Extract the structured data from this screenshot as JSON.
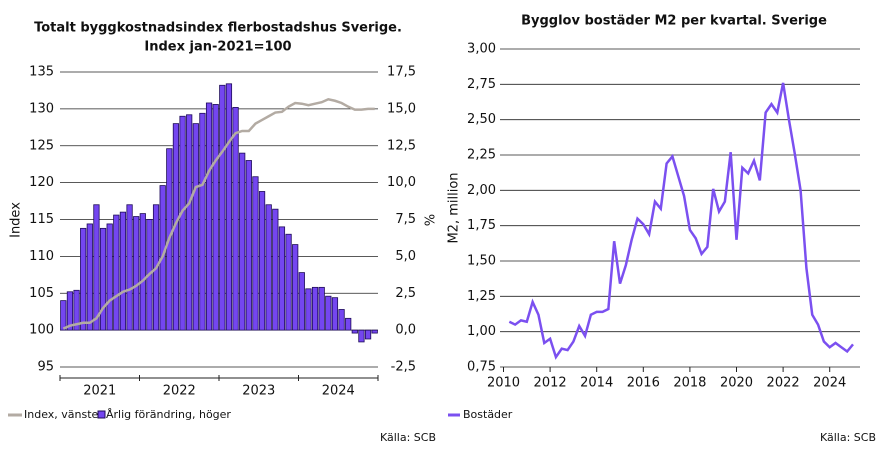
{
  "chart_data": [
    {
      "type": "bar",
      "title": "Totalt byggkostnadsindex flerbostadshus Sverige.",
      "subtitle": "Index jan-2021=100",
      "ylabel": "Index",
      "y2label": "%",
      "year_labels": [
        "2021",
        "2022",
        "2023",
        "2024"
      ],
      "ylim": [
        95,
        135
      ],
      "yticks": [
        95,
        100,
        105,
        110,
        115,
        120,
        125,
        130,
        135
      ],
      "y2lim": [
        -2.5,
        17.5
      ],
      "y2ticks": [
        {
          "value": -2.5,
          "label": "-2,5"
        },
        {
          "value": 0,
          "label": "0,0"
        },
        {
          "value": 2.5,
          "label": "2,5"
        },
        {
          "value": 5,
          "label": "5,0"
        },
        {
          "value": 7.5,
          "label": "7,5"
        },
        {
          "value": 10,
          "label": "10,0"
        },
        {
          "value": 12.5,
          "label": "12,5"
        },
        {
          "value": 15,
          "label": "15,0"
        },
        {
          "value": 17.5,
          "label": "17,5"
        }
      ],
      "grid": true,
      "series": [
        {
          "name": "Index, vänster",
          "type": "line",
          "color": "#b3aba3",
          "values": [
            100.2,
            100.6,
            100.8,
            101.0,
            101.0,
            101.6,
            103.0,
            104.0,
            104.6,
            105.2,
            105.5,
            106.0,
            106.7,
            107.6,
            108.4,
            110.0,
            112.5,
            114.5,
            116.2,
            117.2,
            119.4,
            119.7,
            121.6,
            123.0,
            124.2,
            125.5,
            126.7,
            127.0,
            127.0,
            128.0,
            128.5,
            129.0,
            129.5,
            129.6,
            130.3,
            130.8,
            130.7,
            130.5,
            130.7,
            130.9,
            131.3,
            131.1,
            130.8,
            130.3,
            129.9,
            129.9,
            130.0,
            130.0
          ]
        },
        {
          "name": "Årlig förändring, höger",
          "type": "bar",
          "axis": "y2",
          "color": "#7446f0",
          "values": [
            2.0,
            2.6,
            2.7,
            6.9,
            7.2,
            8.5,
            6.9,
            7.2,
            7.8,
            8.0,
            8.5,
            7.7,
            7.9,
            7.5,
            8.5,
            9.8,
            12.3,
            14.0,
            14.5,
            14.6,
            14.0,
            14.7,
            15.4,
            15.3,
            16.6,
            16.7,
            15.1,
            12.0,
            11.5,
            10.4,
            9.4,
            8.5,
            8.2,
            7.0,
            6.5,
            5.8,
            3.9,
            2.8,
            2.9,
            2.9,
            2.3,
            2.2,
            1.4,
            0.8,
            -0.2,
            -0.8,
            -0.6,
            -0.2
          ]
        }
      ],
      "source": "Källa: SCB"
    },
    {
      "type": "line",
      "title": "Bygglov bostäder M2 per kvartal. Sverige",
      "ylabel": "M2, million",
      "xlim": [
        2009.85,
        2025.3
      ],
      "xticks": [
        2010,
        2012,
        2014,
        2016,
        2018,
        2020,
        2022,
        2024
      ],
      "ylim": [
        0.75,
        3.0
      ],
      "yticks": [
        {
          "value": 0.75,
          "label": "0,75"
        },
        {
          "value": 1.0,
          "label": "1,00"
        },
        {
          "value": 1.25,
          "label": "1,25"
        },
        {
          "value": 1.5,
          "label": "1,50"
        },
        {
          "value": 1.75,
          "label": "1,75"
        },
        {
          "value": 2.0,
          "label": "2,00"
        },
        {
          "value": 2.25,
          "label": "2,25"
        },
        {
          "value": 2.5,
          "label": "2,50"
        },
        {
          "value": 2.75,
          "label": "2,75"
        },
        {
          "value": 3.0,
          "label": "3,00"
        }
      ],
      "grid": true,
      "x": [
        2010.25,
        2010.5,
        2010.75,
        2011,
        2011.25,
        2011.5,
        2011.75,
        2012,
        2012.25,
        2012.5,
        2012.75,
        2013,
        2013.25,
        2013.5,
        2013.75,
        2014,
        2014.25,
        2014.5,
        2014.75,
        2015,
        2015.25,
        2015.5,
        2015.75,
        2016,
        2016.25,
        2016.5,
        2016.75,
        2017,
        2017.25,
        2017.5,
        2017.75,
        2018,
        2018.25,
        2018.5,
        2018.75,
        2019,
        2019.25,
        2019.5,
        2019.75,
        2020,
        2020.25,
        2020.5,
        2020.75,
        2021,
        2021.25,
        2021.5,
        2021.75,
        2022,
        2022.25,
        2022.5,
        2022.75,
        2023,
        2023.25,
        2023.5,
        2023.75,
        2024,
        2024.25,
        2024.5,
        2024.75,
        2025
      ],
      "series": [
        {
          "name": "Bostäder",
          "color": "#7b50f0",
          "values": [
            1.07,
            1.05,
            1.08,
            1.07,
            1.21,
            1.12,
            0.92,
            0.95,
            0.82,
            0.88,
            0.87,
            0.93,
            1.04,
            0.97,
            1.12,
            1.14,
            1.14,
            1.16,
            1.64,
            1.34,
            1.47,
            1.65,
            1.8,
            1.76,
            1.69,
            1.92,
            1.87,
            2.19,
            2.24,
            2.1,
            1.96,
            1.72,
            1.66,
            1.55,
            1.6,
            2.01,
            1.85,
            1.92,
            2.27,
            1.65,
            2.16,
            2.12,
            2.21,
            2.07,
            2.55,
            2.61,
            2.55,
            2.76,
            2.5,
            2.26,
            2.0,
            1.45,
            1.12,
            1.05,
            0.93,
            0.89,
            0.92,
            0.89,
            0.86,
            0.91
          ]
        }
      ],
      "source": "Källa: SCB"
    }
  ]
}
